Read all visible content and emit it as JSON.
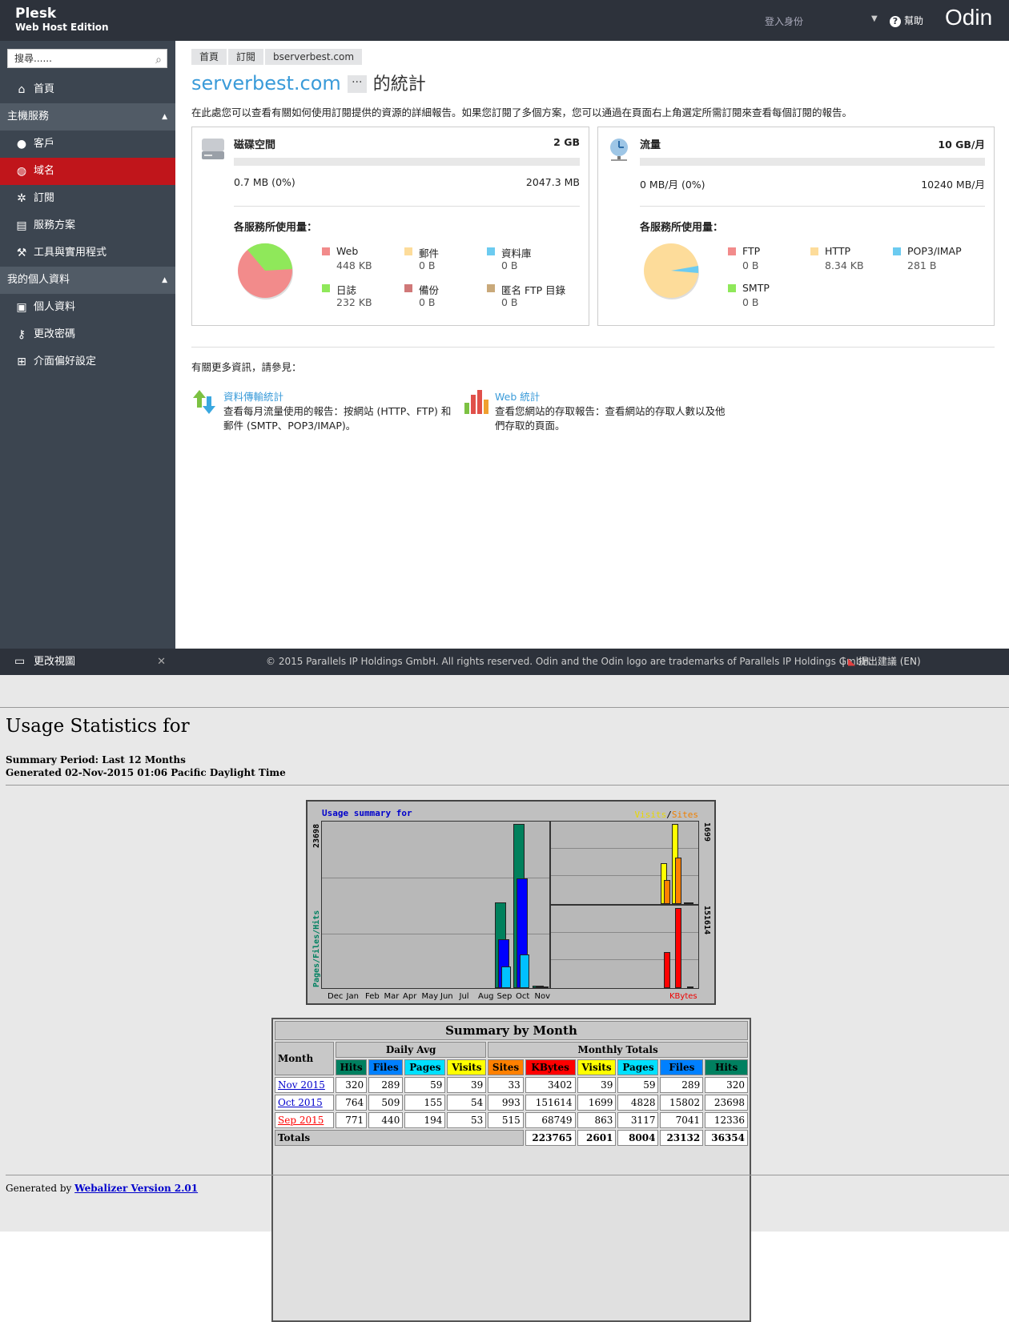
{
  "header": {
    "brand_line1": "Plesk",
    "brand_line2": "Web Host Edition",
    "login_as": "登入身份",
    "help": "幫助",
    "vendor_logo": "Odin"
  },
  "sidebar": {
    "search_placeholder": "搜尋......",
    "home": "首頁",
    "group_hosting": "主機服務",
    "customers": "客戶",
    "domains": "域名",
    "subscriptions": "訂閱",
    "service_plans": "服務方案",
    "tools": "工具與實用程式",
    "group_profile": "我的個人資料",
    "profile": "個人資料",
    "change_password": "更改密碼",
    "preferences": "介面偏好設定",
    "change_view": "更改視圖"
  },
  "breadcrumb": [
    "首頁",
    "訂閱",
    "bserverbest.com"
  ],
  "page": {
    "title_domain": "serverbest.com",
    "title_more": "···",
    "title_suffix": "的統計",
    "description": "在此處您可以查看有關如何使用訂閱提供的資源的詳細報告。如果您訂閱了多個方案，您可以通過在頁面右上角選定所需訂閱來查看每個訂閱的報告。"
  },
  "disk": {
    "title": "磁碟空間",
    "limit": "2 GB",
    "used": "0.7 MB (0%)",
    "total": "2047.3 MB",
    "per_service": "各服務所使用量：",
    "legend": [
      {
        "name": "Web",
        "value": "448 KB",
        "color": "#f28b8b"
      },
      {
        "name": "郵件",
        "value": "0 B",
        "color": "#fddc9a"
      },
      {
        "name": "資料庫",
        "value": "0 B",
        "color": "#6ccbf0"
      },
      {
        "name": "日誌",
        "value": "232 KB",
        "color": "#8fe85a"
      },
      {
        "name": "備份",
        "value": "0 B",
        "color": "#d07878"
      },
      {
        "name": "匿名 FTP 目錄",
        "value": "0 B",
        "color": "#c9a97a"
      }
    ]
  },
  "traffic": {
    "title": "流量",
    "limit": "10 GB/月",
    "used": "0 MB/月 (0%)",
    "total": "10240 MB/月",
    "per_service": "各服務所使用量：",
    "legend": [
      {
        "name": "FTP",
        "value": "0 B",
        "color": "#f28b8b"
      },
      {
        "name": "HTTP",
        "value": "8.34 KB",
        "color": "#fddc9a"
      },
      {
        "name": "POP3/IMAP",
        "value": "281 B",
        "color": "#6ccbf0"
      },
      {
        "name": "SMTP",
        "value": "0 B",
        "color": "#8fe85a"
      }
    ]
  },
  "more_info": {
    "label": "有關更多資訊，請參見：",
    "transfer_title": "資料傳輸統計",
    "transfer_desc": "查看每月流量使用的報告：按網站 (HTTP、FTP) 和郵件 (SMTP、POP3/IMAP)。",
    "web_title": "Web 統計",
    "web_desc": "查看您網站的存取報告：查看網站的存取人數以及他們存取的頁面。"
  },
  "footer": {
    "copyright": "© 2015 Parallels IP Holdings GmbH. All rights reserved. Odin and the Odin logo are trademarks of Parallels IP Holdings GmbH.",
    "feedback": "提出建議 (EN)"
  },
  "webalizer": {
    "title": "Usage Statistics for",
    "summary_period": "Summary Period: Last 12 Months",
    "generated": "Generated 02-Nov-2015 01:06 Pacific Daylight Time",
    "graph_title": "Usage summary for",
    "graph_visits": "Visits",
    "graph_slash": "/",
    "graph_sites": "Sites",
    "graph_kbytes": "KBytes",
    "graph_left_axis": "Pages/Files/Hits",
    "graph_max_hits": "23698",
    "graph_max_visits": "1699",
    "graph_max_kbytes": "151614",
    "months": [
      "Dec",
      "Jan",
      "Feb",
      "Mar",
      "Apr",
      "May",
      "Jun",
      "Jul",
      "Aug",
      "Sep",
      "Oct",
      "Nov"
    ],
    "table_title": "Summary by Month",
    "col_month": "Month",
    "daily_avg": "Daily Avg",
    "monthly_totals": "Monthly Totals",
    "cols": [
      "Hits",
      "Files",
      "Pages",
      "Visits",
      "Sites",
      "KBytes",
      "Visits",
      "Pages",
      "Files",
      "Hits"
    ],
    "rows": [
      {
        "month": "Nov 2015",
        "vals": [
          "320",
          "289",
          "59",
          "39",
          "33",
          "3402",
          "39",
          "59",
          "289",
          "320"
        ]
      },
      {
        "month": "Oct 2015",
        "vals": [
          "764",
          "509",
          "155",
          "54",
          "993",
          "151614",
          "1699",
          "4828",
          "15802",
          "23698"
        ]
      },
      {
        "month": "Sep 2015",
        "vals": [
          "771",
          "440",
          "194",
          "53",
          "515",
          "68749",
          "863",
          "3117",
          "7041",
          "12336"
        ]
      }
    ],
    "totals_label": "Totals",
    "totals": [
      "223765",
      "2601",
      "8004",
      "23132",
      "36354"
    ],
    "generated_by": "Generated by",
    "version_link": "Webalizer Version 2.01"
  },
  "chart_data": {
    "type": "bar",
    "categories": [
      "Dec",
      "Jan",
      "Feb",
      "Mar",
      "Apr",
      "May",
      "Jun",
      "Jul",
      "Aug",
      "Sep",
      "Oct",
      "Nov"
    ],
    "series": [
      {
        "name": "Hits",
        "values": [
          0,
          0,
          0,
          0,
          0,
          0,
          0,
          0,
          0,
          12336,
          23698,
          320
        ]
      },
      {
        "name": "Files",
        "values": [
          0,
          0,
          0,
          0,
          0,
          0,
          0,
          0,
          0,
          7041,
          15802,
          289
        ]
      },
      {
        "name": "Pages",
        "values": [
          0,
          0,
          0,
          0,
          0,
          0,
          0,
          0,
          0,
          3117,
          4828,
          59
        ]
      },
      {
        "name": "Visits",
        "values": [
          0,
          0,
          0,
          0,
          0,
          0,
          0,
          0,
          0,
          863,
          1699,
          39
        ]
      },
      {
        "name": "Sites",
        "values": [
          0,
          0,
          0,
          0,
          0,
          0,
          0,
          0,
          0,
          515,
          993,
          33
        ]
      },
      {
        "name": "KBytes",
        "values": [
          0,
          0,
          0,
          0,
          0,
          0,
          0,
          0,
          0,
          68749,
          151614,
          3402
        ]
      }
    ]
  }
}
